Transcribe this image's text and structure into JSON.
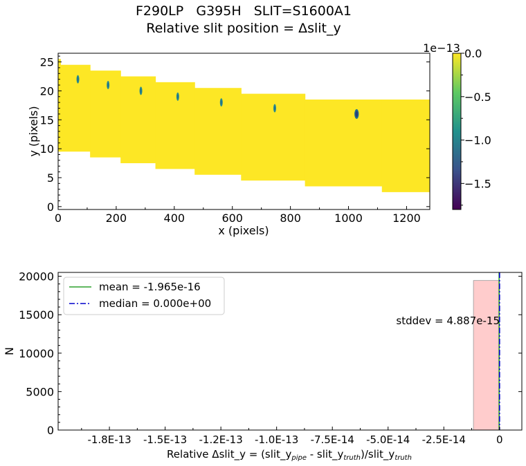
{
  "title_line1": "F290LP   G395H   SLIT=S1600A1",
  "title_line2": "Relative slit position = Δslit_y",
  "colors": {
    "map_fill": "#fde725",
    "hist_fill": "#ffcccc",
    "hist_edge": "#999999",
    "mean_line": "#2ca02c",
    "median_line": "#0000cc"
  },
  "chart_data": [
    {
      "type": "heatmap",
      "xlabel": "x (pixels)",
      "ylabel": "y (pixels)",
      "xlim": [
        0,
        1280
      ],
      "ylim": [
        -0.5,
        26.5
      ],
      "x_ticks": [
        0,
        200,
        400,
        600,
        800,
        1000,
        1200
      ],
      "y_ticks": [
        0,
        5,
        10,
        15,
        20,
        25
      ],
      "colorbar": {
        "range": [
          -1.8e-13,
          0.0
        ],
        "ticks": [
          "0.0",
          "−0.5",
          "−1.0",
          "−1.5"
        ],
        "tick_values": [
          0.0,
          -0.5,
          -1.0,
          -1.5
        ],
        "offset_label": "1e−13",
        "colormap": "viridis"
      },
      "steps": [
        {
          "x0": 0,
          "x1": 8,
          "y0": 10,
          "y1": 25
        },
        {
          "x0": 8,
          "x1": 110,
          "y0": 10,
          "y1": 24
        },
        {
          "x0": 110,
          "x1": 215,
          "y0": 9,
          "y1": 23
        },
        {
          "x0": 215,
          "x1": 335,
          "y0": 8,
          "y1": 22
        },
        {
          "x0": 335,
          "x1": 470,
          "y0": 7,
          "y1": 21
        },
        {
          "x0": 470,
          "x1": 630,
          "y0": 6,
          "y1": 20
        },
        {
          "x0": 630,
          "x1": 850,
          "y0": 5,
          "y1": 19
        },
        {
          "x0": 850,
          "x1": 1115,
          "y0": 4,
          "y1": 18
        },
        {
          "x0": 1115,
          "x1": 1280,
          "y0": 3,
          "y1": 18
        }
      ],
      "spots": [
        {
          "x": 68,
          "y": 22,
          "value": -5e-14
        },
        {
          "x": 172,
          "y": 21,
          "value": -5e-14
        },
        {
          "x": 285,
          "y": 20,
          "value": -6e-14
        },
        {
          "x": 412,
          "y": 19,
          "value": -6e-14
        },
        {
          "x": 562,
          "y": 18,
          "value": -6e-14
        },
        {
          "x": 746,
          "y": 17,
          "value": -7e-14
        },
        {
          "x": 1028,
          "y": 16,
          "value": -1e-13
        }
      ]
    },
    {
      "type": "bar",
      "xlabel_parts": [
        "Relative Δslit_y = (slit_y",
        "pipe",
        " - slit_y",
        "truth",
        ")/slit_y",
        "truth"
      ],
      "ylabel": "N",
      "xlim": [
        -1.98e-13,
        1e-14
      ],
      "ylim": [
        0,
        20500
      ],
      "x_ticks": [
        -1.75e-13,
        -1.5e-13,
        -1.25e-13,
        -1e-13,
        -7.5e-14,
        -5e-14,
        -2.5e-14,
        0
      ],
      "x_tick_labels": [
        "-1.8E-13",
        "-1.5E-13",
        "-1.2E-13",
        "-1.0E-13",
        "-7.5E-14",
        "-5.0E-14",
        "-2.5E-14",
        "0"
      ],
      "y_ticks": [
        0,
        5000,
        10000,
        15000,
        20000
      ],
      "bins": [
        {
          "x0": -1.17e-14,
          "x1": 0,
          "count": 19450
        }
      ],
      "mean": -1.965e-16,
      "median": 0.0,
      "legend": {
        "placement": "upper-left",
        "entries": [
          "mean = -1.965e-16",
          "median = 0.000e+00"
        ]
      },
      "annotation": "stddev = 4.887e-15"
    }
  ]
}
